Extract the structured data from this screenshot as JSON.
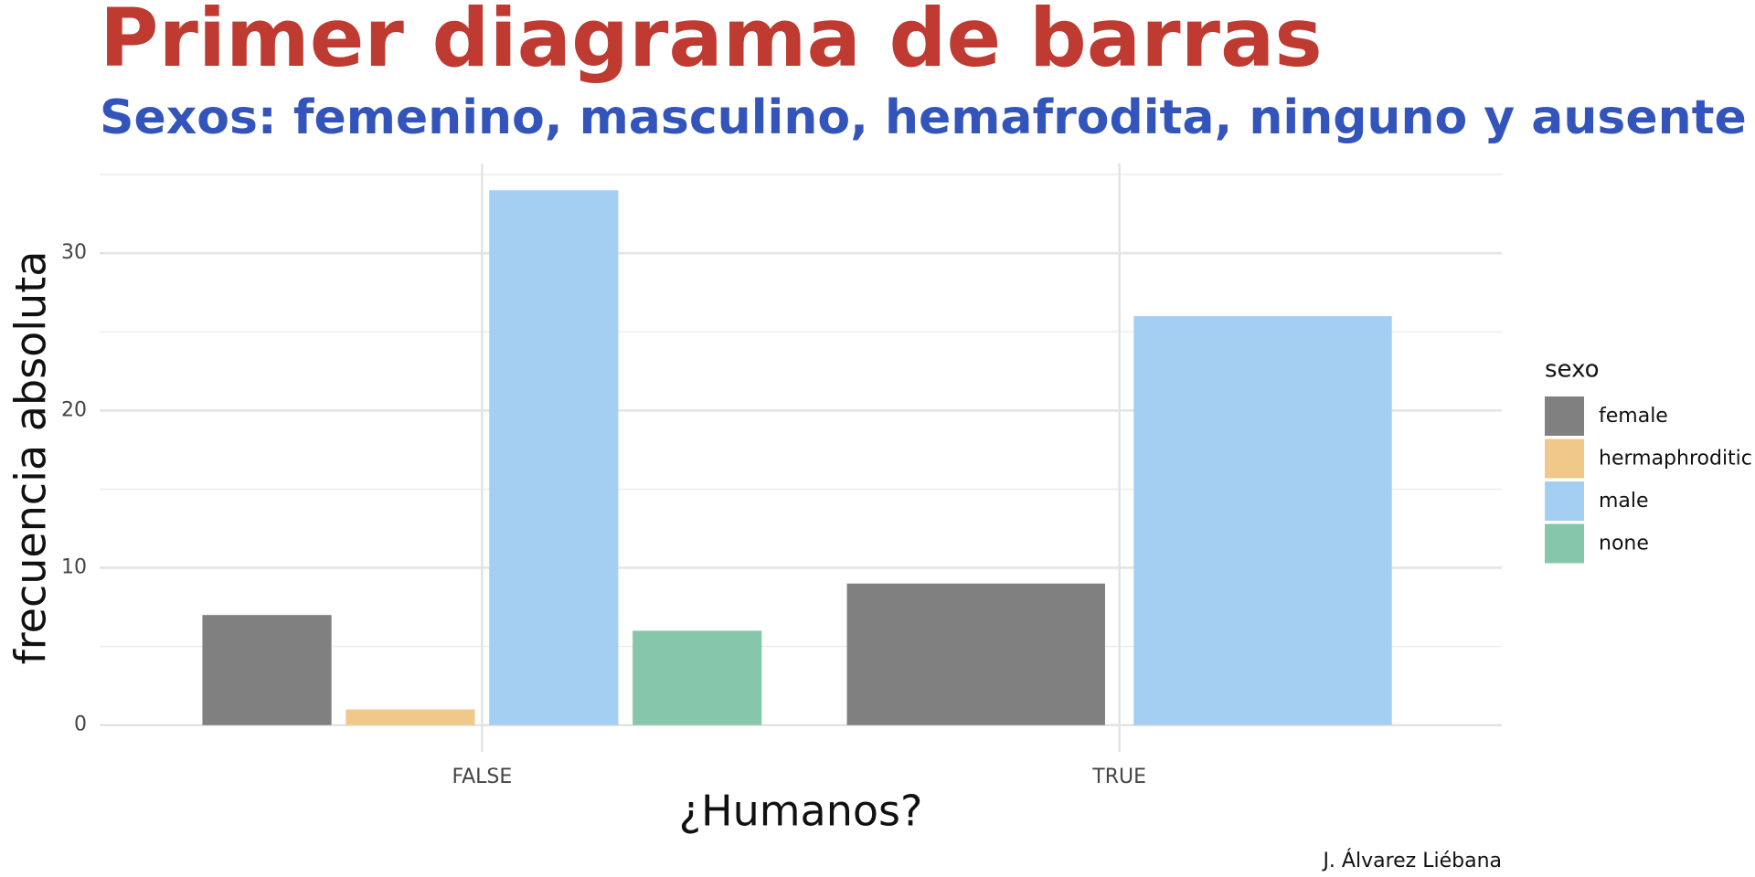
{
  "chart_data": {
    "type": "bar",
    "title": "Primer diagrama de barras",
    "subtitle": "Sexos: femenino, masculino, hemafrodita, ninguno y ausente",
    "x_label": "¿Humanos?",
    "y_label": "frecuencia absoluta",
    "caption": "J. Álvarez Liébana",
    "legend_title": "sexo",
    "legend_position": "right",
    "categories": [
      "FALSE",
      "TRUE"
    ],
    "series": [
      {
        "name": "female",
        "color": "#808080",
        "values": [
          7,
          9
        ]
      },
      {
        "name": "hermaphroditic",
        "color": "#f0c88a",
        "values": [
          1,
          null
        ]
      },
      {
        "name": "male",
        "color": "#a4cff2",
        "values": [
          34,
          26
        ]
      },
      {
        "name": "none",
        "color": "#86c6ab",
        "values": [
          6,
          null
        ]
      }
    ],
    "ylim": [
      -1.7,
      35.7
    ],
    "yticks": [
      0,
      10,
      20,
      30
    ],
    "y_minor_ticks": [
      5,
      15,
      25,
      35
    ],
    "grid": true
  }
}
